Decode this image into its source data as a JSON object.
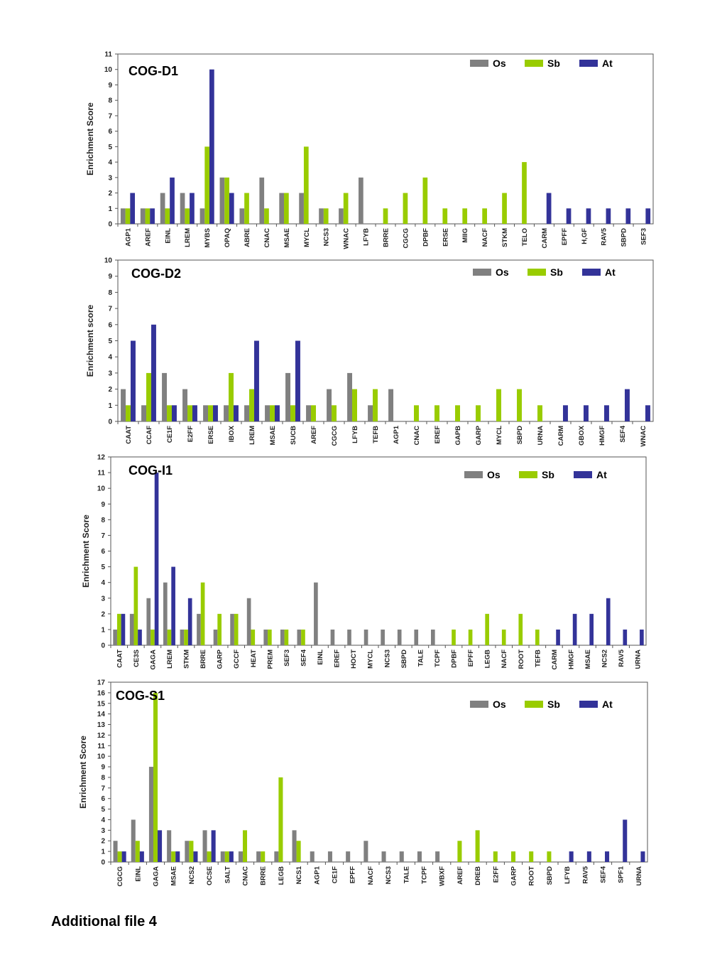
{
  "footer": {
    "note": "Additional file 4"
  },
  "colors": {
    "Os": "#808080",
    "Sb": "#99cc00",
    "At": "#333399"
  },
  "chart_data": [
    {
      "type": "bar",
      "title": "COG-D1",
      "ylabel": "Enrichment Score",
      "ylim": [
        0,
        11
      ],
      "legend": "top-right",
      "grid": false,
      "categories": [
        "AGP1",
        "AREF",
        "EINL",
        "LREM",
        "MYBS",
        "OPAQ",
        "ABRE",
        "CNAC",
        "MSAE",
        "MYCL",
        "NCS3",
        "WNAC",
        "LFYB",
        "BRRE",
        "CGCG",
        "DPBF",
        "ERSE",
        "MIIG",
        "NACF",
        "STKM",
        "TELO",
        "CARM",
        "EPFF",
        "H,GF",
        "RAV5",
        "SBPD",
        "SEF3"
      ],
      "series": [
        {
          "name": "Os",
          "values": [
            1,
            1,
            2,
            2,
            1,
            3,
            1,
            3,
            2,
            2,
            1,
            1,
            3,
            0,
            0,
            0,
            0,
            0,
            0,
            0,
            0,
            0,
            0,
            0,
            0,
            0,
            0
          ]
        },
        {
          "name": "Sb",
          "values": [
            1,
            1,
            1,
            1,
            5,
            3,
            2,
            1,
            2,
            5,
            1,
            2,
            0,
            1,
            2,
            3,
            1,
            1,
            1,
            2,
            4,
            0,
            0,
            0,
            0,
            0,
            0
          ]
        },
        {
          "name": "At",
          "values": [
            2,
            1,
            3,
            2,
            10,
            2,
            0,
            0,
            0,
            0,
            0,
            0,
            0,
            0,
            0,
            0,
            0,
            0,
            0,
            0,
            0,
            2,
            1,
            1,
            1,
            1,
            1
          ]
        }
      ]
    },
    {
      "type": "bar",
      "title": "COG-D2",
      "ylabel": "Enrichment score",
      "ylim": [
        0,
        10
      ],
      "legend": "top-right",
      "grid": false,
      "categories": [
        "CAAT",
        "CCAF",
        "CE1F",
        "E2FF",
        "ERSE",
        "IBOX",
        "LREM",
        "MSAE",
        "SUCB",
        "AREF",
        "CGCG",
        "LFYB",
        "TEFB",
        "AGP1",
        "CNAC",
        "EREF",
        "GAPB",
        "GARP",
        "MYCL",
        "SBPD",
        "URNA",
        "CARM",
        "GBOX",
        "HMGF",
        "SEF4",
        "WNAC"
      ],
      "series": [
        {
          "name": "Os",
          "values": [
            2,
            1,
            3,
            2,
            1,
            1,
            1,
            1,
            3,
            1,
            2,
            3,
            1,
            2,
            0,
            0,
            0,
            0,
            0,
            0,
            0,
            0,
            0,
            0,
            0,
            0
          ]
        },
        {
          "name": "Sb",
          "values": [
            1,
            3,
            1,
            1,
            1,
            3,
            2,
            1,
            1,
            1,
            1,
            2,
            2,
            0,
            1,
            1,
            1,
            1,
            2,
            2,
            1,
            0,
            0,
            0,
            0,
            0
          ]
        },
        {
          "name": "At",
          "values": [
            5,
            6,
            1,
            1,
            1,
            1,
            5,
            1,
            5,
            0,
            0,
            0,
            0,
            0,
            0,
            0,
            0,
            0,
            0,
            0,
            0,
            1,
            1,
            1,
            2,
            1
          ]
        }
      ]
    },
    {
      "type": "bar",
      "title": "COG-I1",
      "ylabel": "Enrichment Score",
      "ylim": [
        0,
        12
      ],
      "legend": "top-right",
      "grid": false,
      "categories": [
        "CAAT",
        "CE3S",
        "GAGA",
        "LREM",
        "STKM",
        "BRRE",
        "GARP",
        "GCCF",
        "HEAT",
        "PREM",
        "SEF3",
        "SEF4",
        "EINL",
        "EREF",
        "HOCT",
        "MYCL",
        "NCS3",
        "SBPD",
        "TALE",
        "TCPF",
        "DPBF",
        "EPFF",
        "LEGB",
        "NACF",
        "ROOT",
        "TEFB",
        "CARM",
        "HMGF",
        "MSAE",
        "NCS2",
        "RAV5",
        "URNA"
      ],
      "series": [
        {
          "name": "Os",
          "values": [
            1,
            2,
            3,
            4,
            1,
            2,
            1,
            2,
            3,
            1,
            1,
            1,
            4,
            1,
            1,
            1,
            1,
            1,
            1,
            1,
            0,
            0,
            0,
            0,
            0,
            0,
            0,
            0,
            0,
            0,
            0,
            0
          ]
        },
        {
          "name": "Sb",
          "values": [
            2,
            5,
            1,
            1,
            1,
            4,
            2,
            2,
            1,
            1,
            1,
            1,
            0,
            0,
            0,
            0,
            0,
            0,
            0,
            0,
            1,
            1,
            2,
            1,
            2,
            1,
            0,
            0,
            0,
            0,
            0,
            0
          ]
        },
        {
          "name": "At",
          "values": [
            2,
            1,
            11,
            5,
            3,
            0,
            0,
            0,
            0,
            0,
            0,
            0,
            0,
            0,
            0,
            0,
            0,
            0,
            0,
            0,
            0,
            0,
            0,
            0,
            0,
            0,
            1,
            2,
            2,
            3,
            1,
            1
          ]
        }
      ]
    },
    {
      "type": "bar",
      "title": "COG-S1",
      "ylabel": "Enrichment Score",
      "ylim": [
        0,
        17
      ],
      "legend": "top-right",
      "grid": false,
      "categories": [
        "CGCG",
        "EINL",
        "GAGA",
        "MSAE",
        "NCS2",
        "OCSE",
        "SALT",
        "CNAC",
        "BRRE",
        "LEGB",
        "NCS1",
        "AGP1",
        "CE1F",
        "EPFF",
        "NACF",
        "NCS3",
        "TALE",
        "TCPF",
        "WBXF",
        "AREF",
        "DREB",
        "E2FF",
        "GARP",
        "ROOT",
        "SBPD",
        "LFYB",
        "RAV5",
        "SEF4",
        "SPF1",
        "URNA"
      ],
      "series": [
        {
          "name": "Os",
          "values": [
            2,
            4,
            9,
            3,
            2,
            3,
            1,
            1,
            1,
            1,
            3,
            1,
            1,
            1,
            2,
            1,
            1,
            1,
            1,
            0,
            0,
            0,
            0,
            0,
            0,
            0,
            0,
            0,
            0,
            0
          ]
        },
        {
          "name": "Sb",
          "values": [
            1,
            2,
            16,
            1,
            2,
            1,
            1,
            3,
            1,
            8,
            2,
            0,
            0,
            0,
            0,
            0,
            0,
            0,
            0,
            2,
            3,
            1,
            1,
            1,
            1,
            0,
            0,
            0,
            0,
            0
          ]
        },
        {
          "name": "At",
          "values": [
            1,
            1,
            3,
            1,
            1,
            3,
            1,
            0,
            0,
            0,
            0,
            0,
            0,
            0,
            0,
            0,
            0,
            0,
            0,
            0,
            0,
            0,
            0,
            0,
            0,
            1,
            1,
            1,
            4,
            1
          ]
        }
      ]
    }
  ]
}
